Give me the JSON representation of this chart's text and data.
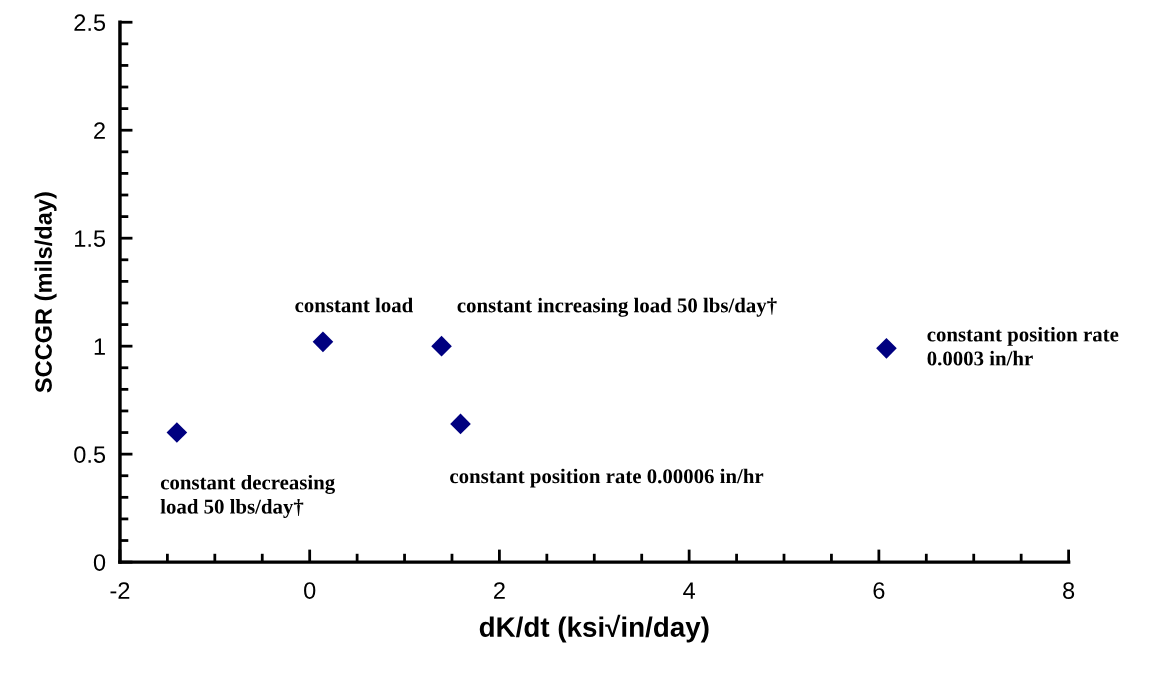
{
  "chart_data": {
    "type": "scatter",
    "xlabel": "dK/dt (ksi√in/day)",
    "ylabel": "SCCGR (mils/day)",
    "x": [
      -1.4,
      0.14,
      1.39,
      1.59,
      6.08
    ],
    "series": [
      {
        "color": "#000080",
        "values": [
          0.6,
          1.02,
          1.0,
          0.64,
          0.99
        ]
      }
    ],
    "marker": "diamond",
    "xlim": [
      -2,
      8
    ],
    "xticks": [
      {
        "value": -2,
        "label": "-2"
      },
      0,
      2,
      4,
      6,
      8
    ],
    "ylim": [
      0,
      2.5
    ],
    "yticks": [
      0,
      0.5,
      1,
      1.5,
      2,
      2.5
    ],
    "annotations": [
      {
        "text": "constant decreasing\nload 50 lbs/day†",
        "x": -1.4,
        "y": 0.6
      },
      {
        "text": "constant load",
        "x": 0.14,
        "y": 1.02
      },
      {
        "text": "constant increasing load 50 lbs/day†",
        "x": 1.39,
        "y": 1.0
      },
      {
        "text": "constant position rate 0.00006 in/hr",
        "x": 1.59,
        "y": 0.64
      },
      {
        "text": "constant position rate\n0.0003 in/hr",
        "x": 6.08,
        "y": 0.99
      }
    ]
  }
}
